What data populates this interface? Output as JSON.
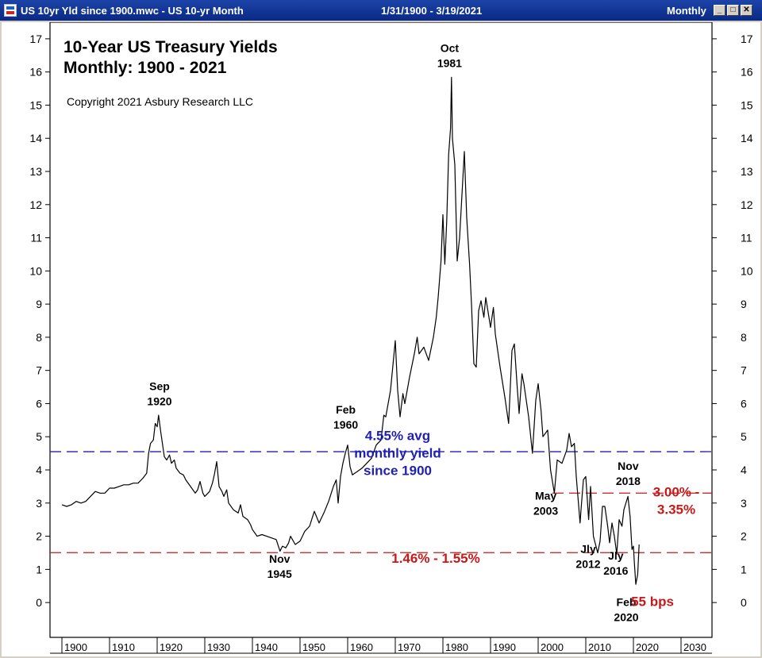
{
  "window": {
    "title": "US 10yr Yld since 1900.mwc - US 10-yr Month",
    "date_range": "1/31/1900 - 3/19/2021",
    "period": "Monthly",
    "minimize_glyph": "_",
    "maximize_glyph": "□",
    "close_glyph": "✕"
  },
  "chart_data": {
    "type": "line",
    "title": "10-Year US Treasury Yields",
    "subtitle": "Monthly: 1900 - 2021",
    "copyright": "Copyright 2021 Asbury Research LLC",
    "xlabel": "",
    "ylabel": "",
    "xlim": [
      1897.5,
      2036.5
    ],
    "ylim": [
      -1.05,
      17.5
    ],
    "x_ticks": [
      1900,
      1910,
      1920,
      1930,
      1940,
      1950,
      1960,
      1970,
      1980,
      1990,
      2000,
      2010,
      2020,
      2030
    ],
    "y_ticks": [
      0,
      1,
      2,
      3,
      4,
      5,
      6,
      7,
      8,
      9,
      10,
      11,
      12,
      13,
      14,
      15,
      16,
      17
    ],
    "grid": false,
    "series": [
      {
        "name": "",
        "color": "#000000",
        "points": [
          [
            1900.0,
            2.95
          ],
          [
            1901.0,
            2.9
          ],
          [
            1902.0,
            2.95
          ],
          [
            1903.0,
            3.05
          ],
          [
            1904.0,
            3.0
          ],
          [
            1905.0,
            3.05
          ],
          [
            1906.0,
            3.2
          ],
          [
            1907.0,
            3.35
          ],
          [
            1908.0,
            3.3
          ],
          [
            1909.0,
            3.3
          ],
          [
            1910.0,
            3.45
          ],
          [
            1911.0,
            3.45
          ],
          [
            1912.0,
            3.5
          ],
          [
            1913.0,
            3.55
          ],
          [
            1914.0,
            3.55
          ],
          [
            1915.0,
            3.6
          ],
          [
            1916.0,
            3.6
          ],
          [
            1917.0,
            3.75
          ],
          [
            1917.8,
            3.9
          ],
          [
            1918.2,
            4.5
          ],
          [
            1918.6,
            4.8
          ],
          [
            1919.2,
            4.9
          ],
          [
            1919.6,
            5.4
          ],
          [
            1920.0,
            5.3
          ],
          [
            1920.3,
            5.65
          ],
          [
            1920.7,
            5.2
          ],
          [
            1921.0,
            4.9
          ],
          [
            1921.5,
            4.4
          ],
          [
            1922.0,
            4.3
          ],
          [
            1922.6,
            4.45
          ],
          [
            1923.0,
            4.2
          ],
          [
            1923.6,
            4.3
          ],
          [
            1924.0,
            4.05
          ],
          [
            1924.8,
            3.9
          ],
          [
            1925.5,
            3.85
          ],
          [
            1926.0,
            3.7
          ],
          [
            1927.0,
            3.5
          ],
          [
            1928.0,
            3.3
          ],
          [
            1928.5,
            3.4
          ],
          [
            1929.0,
            3.65
          ],
          [
            1929.6,
            3.3
          ],
          [
            1930.0,
            3.2
          ],
          [
            1931.0,
            3.35
          ],
          [
            1931.6,
            3.6
          ],
          [
            1932.0,
            3.85
          ],
          [
            1932.5,
            4.25
          ],
          [
            1933.0,
            3.5
          ],
          [
            1933.6,
            3.35
          ],
          [
            1934.0,
            3.2
          ],
          [
            1934.6,
            3.4
          ],
          [
            1935.0,
            3.0
          ],
          [
            1936.0,
            2.8
          ],
          [
            1937.0,
            2.7
          ],
          [
            1937.5,
            2.95
          ],
          [
            1938.0,
            2.6
          ],
          [
            1939.0,
            2.5
          ],
          [
            1939.6,
            2.35
          ],
          [
            1940.0,
            2.2
          ],
          [
            1941.0,
            2.0
          ],
          [
            1942.0,
            2.05
          ],
          [
            1943.0,
            2.0
          ],
          [
            1944.0,
            1.95
          ],
          [
            1945.0,
            1.9
          ],
          [
            1945.8,
            1.55
          ],
          [
            1946.3,
            1.7
          ],
          [
            1947.0,
            1.65
          ],
          [
            1947.6,
            1.8
          ],
          [
            1948.0,
            2.0
          ],
          [
            1949.0,
            1.75
          ],
          [
            1950.0,
            1.85
          ],
          [
            1951.0,
            2.15
          ],
          [
            1952.0,
            2.3
          ],
          [
            1953.0,
            2.75
          ],
          [
            1954.0,
            2.4
          ],
          [
            1955.0,
            2.7
          ],
          [
            1956.0,
            3.05
          ],
          [
            1957.0,
            3.5
          ],
          [
            1957.6,
            3.7
          ],
          [
            1958.0,
            3.0
          ],
          [
            1958.5,
            3.8
          ],
          [
            1959.0,
            4.2
          ],
          [
            1959.5,
            4.5
          ],
          [
            1960.0,
            4.75
          ],
          [
            1960.5,
            4.1
          ],
          [
            1961.0,
            3.85
          ],
          [
            1962.0,
            3.95
          ],
          [
            1963.0,
            4.05
          ],
          [
            1964.0,
            4.2
          ],
          [
            1965.0,
            4.35
          ],
          [
            1966.0,
            4.75
          ],
          [
            1967.0,
            4.9
          ],
          [
            1967.6,
            5.65
          ],
          [
            1968.0,
            5.6
          ],
          [
            1969.0,
            6.4
          ],
          [
            1970.0,
            7.9
          ],
          [
            1970.5,
            6.4
          ],
          [
            1971.0,
            5.6
          ],
          [
            1971.6,
            6.3
          ],
          [
            1972.0,
            6.0
          ],
          [
            1973.0,
            6.8
          ],
          [
            1974.0,
            7.5
          ],
          [
            1974.6,
            8.0
          ],
          [
            1975.0,
            7.5
          ],
          [
            1976.0,
            7.7
          ],
          [
            1977.0,
            7.3
          ],
          [
            1978.0,
            8.0
          ],
          [
            1978.6,
            8.6
          ],
          [
            1979.0,
            9.2
          ],
          [
            1979.6,
            10.3
          ],
          [
            1980.0,
            11.7
          ],
          [
            1980.4,
            10.2
          ],
          [
            1980.8,
            11.5
          ],
          [
            1981.2,
            13.5
          ],
          [
            1981.6,
            14.3
          ],
          [
            1981.8,
            15.84
          ],
          [
            1982.0,
            14.0
          ],
          [
            1982.5,
            13.2
          ],
          [
            1983.0,
            10.3
          ],
          [
            1983.5,
            11.0
          ],
          [
            1984.0,
            12.3
          ],
          [
            1984.5,
            13.6
          ],
          [
            1985.0,
            11.6
          ],
          [
            1985.6,
            10.2
          ],
          [
            1986.0,
            9.0
          ],
          [
            1986.5,
            7.2
          ],
          [
            1987.0,
            7.1
          ],
          [
            1987.5,
            8.8
          ],
          [
            1988.0,
            9.1
          ],
          [
            1988.6,
            8.6
          ],
          [
            1989.0,
            9.2
          ],
          [
            1990.0,
            8.3
          ],
          [
            1990.6,
            8.9
          ],
          [
            1991.0,
            8.1
          ],
          [
            1992.0,
            7.1
          ],
          [
            1993.0,
            6.2
          ],
          [
            1993.8,
            5.4
          ],
          [
            1994.5,
            7.6
          ],
          [
            1995.0,
            7.8
          ],
          [
            1995.6,
            6.5
          ],
          [
            1996.0,
            5.7
          ],
          [
            1996.6,
            6.9
          ],
          [
            1997.0,
            6.6
          ],
          [
            1998.0,
            5.6
          ],
          [
            1998.8,
            4.5
          ],
          [
            1999.5,
            6.1
          ],
          [
            2000.0,
            6.6
          ],
          [
            2000.6,
            5.8
          ],
          [
            2001.0,
            5.0
          ],
          [
            2002.0,
            5.2
          ],
          [
            2002.6,
            4.0
          ],
          [
            2003.4,
            3.3
          ],
          [
            2004.0,
            4.3
          ],
          [
            2005.0,
            4.2
          ],
          [
            2006.0,
            4.6
          ],
          [
            2006.5,
            5.1
          ],
          [
            2007.0,
            4.7
          ],
          [
            2007.6,
            4.8
          ],
          [
            2008.0,
            3.8
          ],
          [
            2008.8,
            2.4
          ],
          [
            2009.0,
            2.8
          ],
          [
            2009.5,
            3.7
          ],
          [
            2010.0,
            3.8
          ],
          [
            2010.6,
            2.5
          ],
          [
            2011.0,
            3.5
          ],
          [
            2011.6,
            2.0
          ],
          [
            2012.5,
            1.5
          ],
          [
            2013.0,
            1.85
          ],
          [
            2013.5,
            2.9
          ],
          [
            2014.0,
            2.9
          ],
          [
            2014.6,
            2.3
          ],
          [
            2015.0,
            1.8
          ],
          [
            2015.5,
            2.4
          ],
          [
            2016.0,
            2.0
          ],
          [
            2016.5,
            1.46
          ],
          [
            2017.0,
            2.5
          ],
          [
            2017.6,
            2.3
          ],
          [
            2018.0,
            2.8
          ],
          [
            2018.85,
            3.2
          ],
          [
            2019.3,
            2.6
          ],
          [
            2019.7,
            1.6
          ],
          [
            2020.0,
            1.7
          ],
          [
            2020.2,
            1.2
          ],
          [
            2020.5,
            0.55
          ],
          [
            2020.9,
            0.85
          ],
          [
            2021.2,
            1.75
          ]
        ]
      }
    ],
    "reference_lines": [
      {
        "y": 4.55,
        "color": "#1f1fb4",
        "style": "dashed"
      },
      {
        "y": 1.505,
        "color": "#c81818",
        "style": "dashed"
      },
      {
        "y": 3.3,
        "color": "#c81818",
        "style": "dashed",
        "x_start": 2003.0
      }
    ],
    "annotations": [
      {
        "lines": [
          "Sep",
          "1920"
        ],
        "x": 1920.5,
        "y": 6.4
      },
      {
        "lines": [
          "Feb",
          "1960"
        ],
        "x": 1959.6,
        "y": 5.7
      },
      {
        "lines": [
          "Oct",
          "1981"
        ],
        "x": 1981.4,
        "y": 16.6
      },
      {
        "lines": [
          "Nov",
          "1945"
        ],
        "x": 1945.7,
        "y": 1.2
      },
      {
        "lines": [
          "May",
          "2003"
        ],
        "x": 2001.6,
        "y": 3.1
      },
      {
        "lines": [
          "Nov",
          "2018"
        ],
        "x": 2018.9,
        "y": 4.0
      },
      {
        "lines": [
          "Jly",
          "2012"
        ],
        "x": 2010.5,
        "y": 1.5
      },
      {
        "lines": [
          "Jly",
          "2016"
        ],
        "x": 2016.3,
        "y": 1.3
      },
      {
        "lines": [
          "Feb",
          "2020"
        ],
        "x": 2018.5,
        "y": -0.1
      }
    ],
    "callouts": [
      {
        "lines": [
          "4.55% avg",
          "monthly yield",
          "since 1900"
        ],
        "color": "#1f1fb4",
        "x": 1970.5,
        "y": 4.9
      },
      {
        "lines": [
          "1.46% - 1.55%"
        ],
        "color": "#c81818",
        "x": 1978.5,
        "y": 1.2
      },
      {
        "lines": [
          "3.00% -",
          "3.35%"
        ],
        "color": "#c81818",
        "x": 2029.0,
        "y": 3.2
      },
      {
        "lines": [
          "55 bps"
        ],
        "color": "#c81818",
        "x": 2024.0,
        "y": -0.1
      }
    ]
  }
}
